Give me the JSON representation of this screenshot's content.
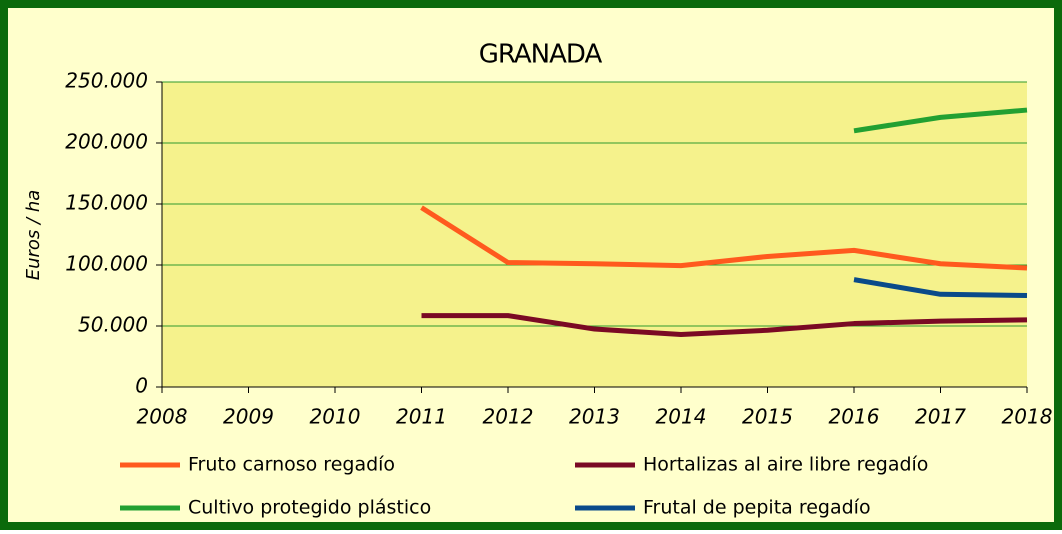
{
  "chart_data": {
    "type": "line",
    "title": "GRANADA",
    "y_label": "Euros / ha",
    "x": [
      2008,
      2009,
      2010,
      2011,
      2012,
      2013,
      2014,
      2015,
      2016,
      2017,
      2018
    ],
    "xlim": [
      2008,
      2018
    ],
    "xticks": [
      2008,
      2009,
      2010,
      2011,
      2012,
      2013,
      2014,
      2015,
      2016,
      2017,
      2018
    ],
    "ylim": [
      0,
      250000
    ],
    "yticks": [
      0,
      {
        "value": 50000,
        "label": "50.000"
      },
      {
        "value": 100000,
        "label": "100.000"
      },
      {
        "value": 150000,
        "label": "150.000"
      },
      {
        "value": 200000,
        "label": "200.000"
      },
      {
        "value": 250000,
        "label": "250.000"
      }
    ],
    "grid": true,
    "legend": "bottom",
    "series": [
      {
        "name": "Fruto carnoso regadío",
        "color": "#ff5a1e",
        "values": [
          null,
          null,
          null,
          147000,
          102000,
          101000,
          99500,
          107000,
          112000,
          101000,
          97500
        ]
      },
      {
        "name": "Hortalizas al aire libre regadío",
        "color": "#7a0a24",
        "values": [
          null,
          null,
          null,
          58500,
          58500,
          47500,
          43000,
          46500,
          52000,
          54000,
          55000
        ]
      },
      {
        "name": "Cultivo protegido plástico",
        "color": "#22a032",
        "values": [
          null,
          null,
          null,
          null,
          null,
          null,
          null,
          null,
          210000,
          221000,
          227000
        ]
      },
      {
        "name": "Frutal de pepita regadío",
        "color": "#0a4a8a",
        "values": [
          null,
          null,
          null,
          null,
          null,
          null,
          null,
          null,
          88000,
          76000,
          75000
        ]
      }
    ]
  }
}
